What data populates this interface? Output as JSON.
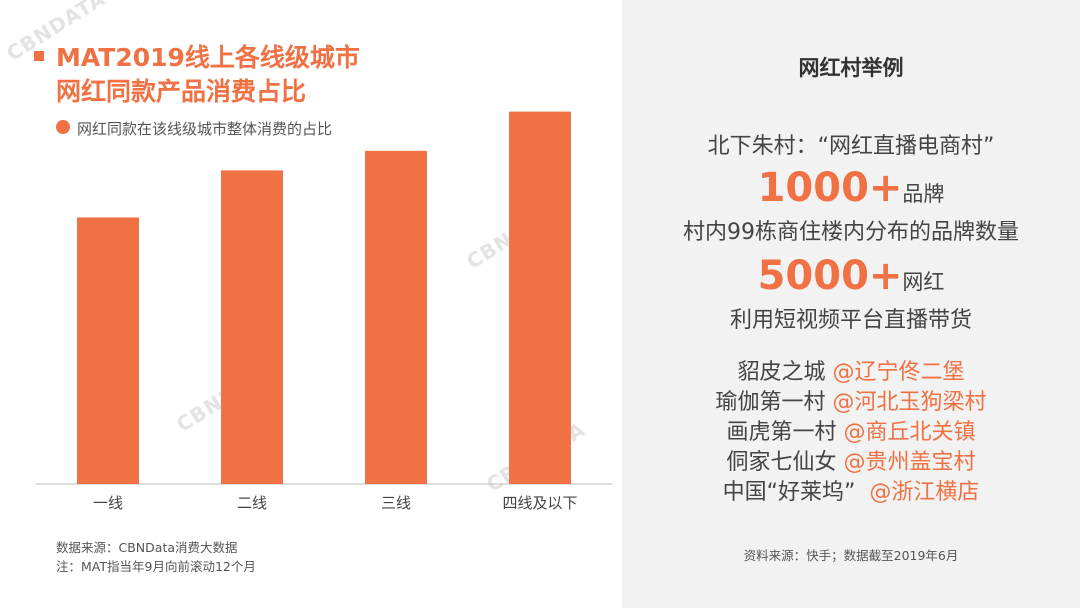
{
  "title": {
    "line1": "MAT2019线上各线级城市",
    "line2": "网红同款产品消费占比"
  },
  "legend": {
    "label": "网红同款在该线级城市整体消费的占比"
  },
  "source_left": {
    "line1": "数据来源：CBNData消费大数据",
    "line2": "注：MAT指当年9月向前滚动12个月"
  },
  "colors": {
    "accent": "#f07143",
    "bar": "#f07143",
    "panel_bg": "#f2f2f2"
  },
  "chart_data": {
    "type": "bar",
    "title": "MAT2019线上各线级城市网红同款产品消费占比",
    "categories": [
      "一线",
      "二线",
      "三线",
      "四线及以下"
    ],
    "series": [
      {
        "name": "网红同款在该线级城市整体消费的占比",
        "values": [
          0.68,
          0.8,
          0.85,
          0.95
        ]
      }
    ],
    "ylim": [
      0,
      1.0
    ],
    "grid": false,
    "legend_position": "top-left"
  },
  "panel": {
    "title": "网红村举例",
    "village": "北下朱村：“网红直播电商村”",
    "stat1": {
      "number": "1000+",
      "unit": "品牌",
      "desc": "村内99栋商住楼内分布的品牌数量"
    },
    "stat2": {
      "number": "5000+",
      "unit": "网红",
      "desc": "利用短视频平台直播带货"
    },
    "examples": [
      {
        "name": "貂皮之城 ",
        "place": "@辽宁佟二堡"
      },
      {
        "name": "瑜伽第一村 ",
        "place": "@河北玉狗梁村"
      },
      {
        "name": "画虎第一村 ",
        "place": "@商丘北关镇"
      },
      {
        "name": "侗家七仙女 ",
        "place": "@贵州盖宝村"
      },
      {
        "name": "中国“好莱坞”  ",
        "place": "@浙江横店"
      }
    ],
    "source": "资料来源：快手；数据截至2019年6月"
  },
  "watermark": {
    "text": "CBNDATA"
  }
}
